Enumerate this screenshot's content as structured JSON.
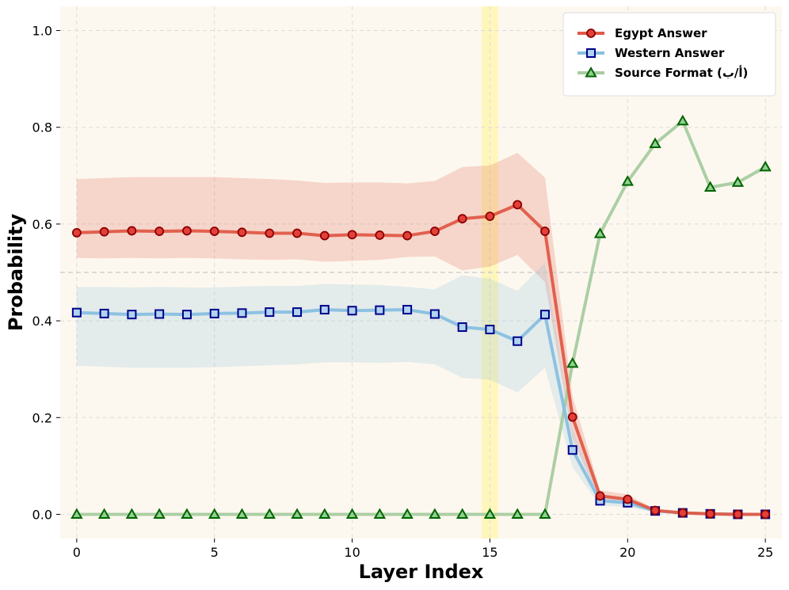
{
  "chart_data": {
    "type": "line",
    "xlabel": "Layer Index",
    "ylabel": "Probability",
    "xlim": [
      -0.6,
      25.6
    ],
    "ylim": [
      -0.05,
      1.05
    ],
    "xticks": [
      0,
      5,
      10,
      15,
      20,
      25
    ],
    "yticks": [
      0.0,
      0.2,
      0.4,
      0.6,
      0.8,
      1.0
    ],
    "xtick_labels": [
      "0",
      "5",
      "10",
      "15",
      "20",
      "25"
    ],
    "ytick_labels": [
      "0.0",
      "0.2",
      "0.4",
      "0.6",
      "0.8",
      "1.0"
    ],
    "grid": true,
    "legend_position": "top-right",
    "reference_line_y": 0.5,
    "highlight_layer": 15,
    "x": [
      0,
      1,
      2,
      3,
      4,
      5,
      6,
      7,
      8,
      9,
      10,
      11,
      12,
      13,
      14,
      15,
      16,
      17,
      18,
      19,
      20,
      21,
      22,
      23,
      24,
      25
    ],
    "series": [
      {
        "name": "Egypt Answer",
        "color": "#e05a47",
        "marker": "circle",
        "marker_fill": "#e3403a",
        "marker_edge": "#8b0000",
        "values": [
          0.582,
          0.584,
          0.586,
          0.585,
          0.586,
          0.585,
          0.583,
          0.581,
          0.581,
          0.576,
          0.578,
          0.577,
          0.576,
          0.585,
          0.611,
          0.616,
          0.64,
          0.585,
          0.201,
          0.038,
          0.031,
          0.008,
          0.003,
          0.001,
          0.0,
          0.0
        ],
        "band_upper": [
          0.693,
          0.695,
          0.697,
          0.697,
          0.697,
          0.697,
          0.695,
          0.693,
          0.69,
          0.685,
          0.686,
          0.686,
          0.684,
          0.689,
          0.718,
          0.721,
          0.747,
          0.696,
          0.244,
          0.05,
          0.041,
          0.011,
          0.004,
          0.002,
          0.001,
          0.001
        ],
        "band_lower": [
          0.53,
          0.529,
          0.53,
          0.529,
          0.53,
          0.529,
          0.527,
          0.526,
          0.527,
          0.522,
          0.524,
          0.526,
          0.532,
          0.533,
          0.504,
          0.512,
          0.536,
          0.48,
          0.156,
          0.026,
          0.021,
          0.006,
          0.002,
          0.0,
          0.0,
          0.0
        ]
      },
      {
        "name": "Western Answer",
        "color": "#88bfe0",
        "marker": "square",
        "marker_fill": "#b0d3ee",
        "marker_edge": "#00008b",
        "values": [
          0.417,
          0.415,
          0.413,
          0.414,
          0.413,
          0.415,
          0.416,
          0.418,
          0.418,
          0.423,
          0.421,
          0.422,
          0.423,
          0.414,
          0.387,
          0.382,
          0.358,
          0.413,
          0.133,
          0.028,
          0.024,
          0.007,
          0.003,
          0.001,
          0.0,
          0.0
        ],
        "band_upper": [
          0.47,
          0.47,
          0.469,
          0.47,
          0.469,
          0.469,
          0.471,
          0.472,
          0.472,
          0.476,
          0.475,
          0.474,
          0.47,
          0.465,
          0.494,
          0.487,
          0.462,
          0.52,
          0.176,
          0.04,
          0.034,
          0.01,
          0.004,
          0.001,
          0.001,
          0.001
        ],
        "band_lower": [
          0.307,
          0.305,
          0.303,
          0.303,
          0.303,
          0.304,
          0.306,
          0.308,
          0.31,
          0.314,
          0.314,
          0.313,
          0.315,
          0.31,
          0.282,
          0.278,
          0.252,
          0.303,
          0.097,
          0.018,
          0.015,
          0.004,
          0.002,
          0.0,
          0.0,
          0.0
        ]
      },
      {
        "name": "Source Format (أ/ب)",
        "color": "#a8cca0",
        "marker": "triangle",
        "marker_fill": "#90d090",
        "marker_edge": "#006400",
        "values": [
          0,
          0,
          0,
          0,
          0,
          0,
          0,
          0,
          0,
          0,
          0,
          0,
          0,
          0,
          0,
          0,
          0,
          0,
          0.312,
          0.58,
          0.688,
          0.766,
          0.813,
          0.676,
          0.686,
          0.718
        ]
      }
    ]
  },
  "colors": {
    "plot_background": "#fdf8ef",
    "highlight_band": "#fff6b3",
    "grid": "#dcdcdc",
    "reference_line": "#c8c8c8"
  }
}
